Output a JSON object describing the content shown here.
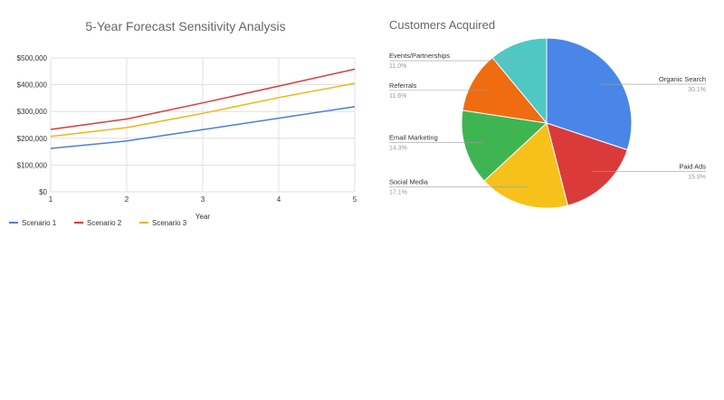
{
  "chart_data": [
    {
      "type": "line",
      "title": "5-Year Forecast Sensitivity Analysis",
      "xlabel": "Year",
      "ylabel": "",
      "x": [
        1,
        2,
        3,
        4,
        5
      ],
      "xticks": [
        "1",
        "2",
        "3",
        "4",
        "5"
      ],
      "ylim": [
        0,
        500000
      ],
      "yticks": [
        0,
        100000,
        200000,
        300000,
        400000,
        500000
      ],
      "ytick_labels": [
        "$0",
        "$100,000",
        "$200,000",
        "$300,000",
        "$400,000",
        "$500,000"
      ],
      "grid": true,
      "legend_position": "bottom",
      "series": [
        {
          "name": "Scenario 1",
          "color": "#4a7fe0",
          "values": [
            162000,
            190000,
            232000,
            275000,
            318000
          ]
        },
        {
          "name": "Scenario 2",
          "color": "#dc3b3b",
          "values": [
            233000,
            272000,
            332000,
            395000,
            458000
          ]
        },
        {
          "name": "Scenario 3",
          "color": "#f2b416",
          "values": [
            207000,
            240000,
            293000,
            352000,
            405000
          ]
        }
      ]
    },
    {
      "type": "pie",
      "title": "Customers Acquired",
      "slices": [
        {
          "label": "Organic Search",
          "pct_text": "30.1%",
          "value": 30.1,
          "color": "#4a86e8"
        },
        {
          "label": "Paid Ads",
          "pct_text": "15.9%",
          "value": 15.9,
          "color": "#db3a3a"
        },
        {
          "label": "Social Media",
          "pct_text": "17.1%",
          "value": 17.1,
          "color": "#f6c11a"
        },
        {
          "label": "Email Marketing",
          "pct_text": "14.3%",
          "value": 14.3,
          "color": "#3fb551"
        },
        {
          "label": "Referrals",
          "pct_text": "11.6%",
          "value": 11.6,
          "color": "#f06c11"
        },
        {
          "label": "Events/Partnerships",
          "pct_text": "11.0%",
          "value": 11.0,
          "color": "#4fc8c3"
        }
      ]
    }
  ]
}
